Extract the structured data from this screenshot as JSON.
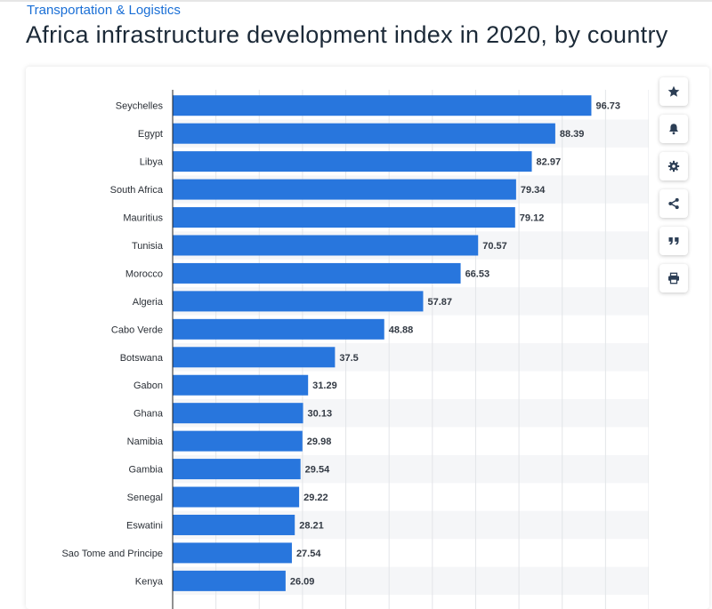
{
  "header": {
    "category": "Transportation & Logistics",
    "title": "Africa infrastructure development index in 2020, by country"
  },
  "toolbar": {
    "buttons": [
      {
        "name": "star-icon"
      },
      {
        "name": "bell-icon"
      },
      {
        "name": "gear-icon"
      },
      {
        "name": "share-icon"
      },
      {
        "name": "quote-icon"
      },
      {
        "name": "print-icon"
      }
    ]
  },
  "colors": {
    "bar": "#2876dd",
    "band": "#f5f6f8",
    "grid": "#e3e5e8",
    "axis": "#222222",
    "accent": "#1a6fd6"
  },
  "chart_data": {
    "type": "bar",
    "orientation": "horizontal",
    "categories": [
      "Seychelles",
      "Egypt",
      "Libya",
      "South Africa",
      "Mauritius",
      "Tunisia",
      "Morocco",
      "Algeria",
      "Cabo Verde",
      "Botswana",
      "Gabon",
      "Ghana",
      "Namibia",
      "Gambia",
      "Senegal",
      "Eswatini",
      "Sao Tome and Principe",
      "Kenya"
    ],
    "values": [
      96.73,
      88.39,
      82.97,
      79.34,
      79.12,
      70.57,
      66.53,
      57.87,
      48.88,
      37.5,
      31.29,
      30.13,
      29.98,
      29.54,
      29.22,
      28.21,
      27.54,
      26.09
    ],
    "value_labels": [
      "96.73",
      "88.39",
      "82.97",
      "79.34",
      "79.12",
      "70.57",
      "66.53",
      "57.87",
      "48.88",
      "37.5",
      "31.29",
      "30.13",
      "29.98",
      "29.54",
      "29.22",
      "28.21",
      "27.54",
      "26.09"
    ],
    "xlim": [
      0,
      110
    ],
    "x_gridlines": [
      10,
      20,
      30,
      40,
      50,
      60,
      70,
      80,
      90,
      100,
      110
    ],
    "grid": true,
    "alternating_row_bands": true,
    "title": "",
    "xlabel": "",
    "ylabel": ""
  }
}
